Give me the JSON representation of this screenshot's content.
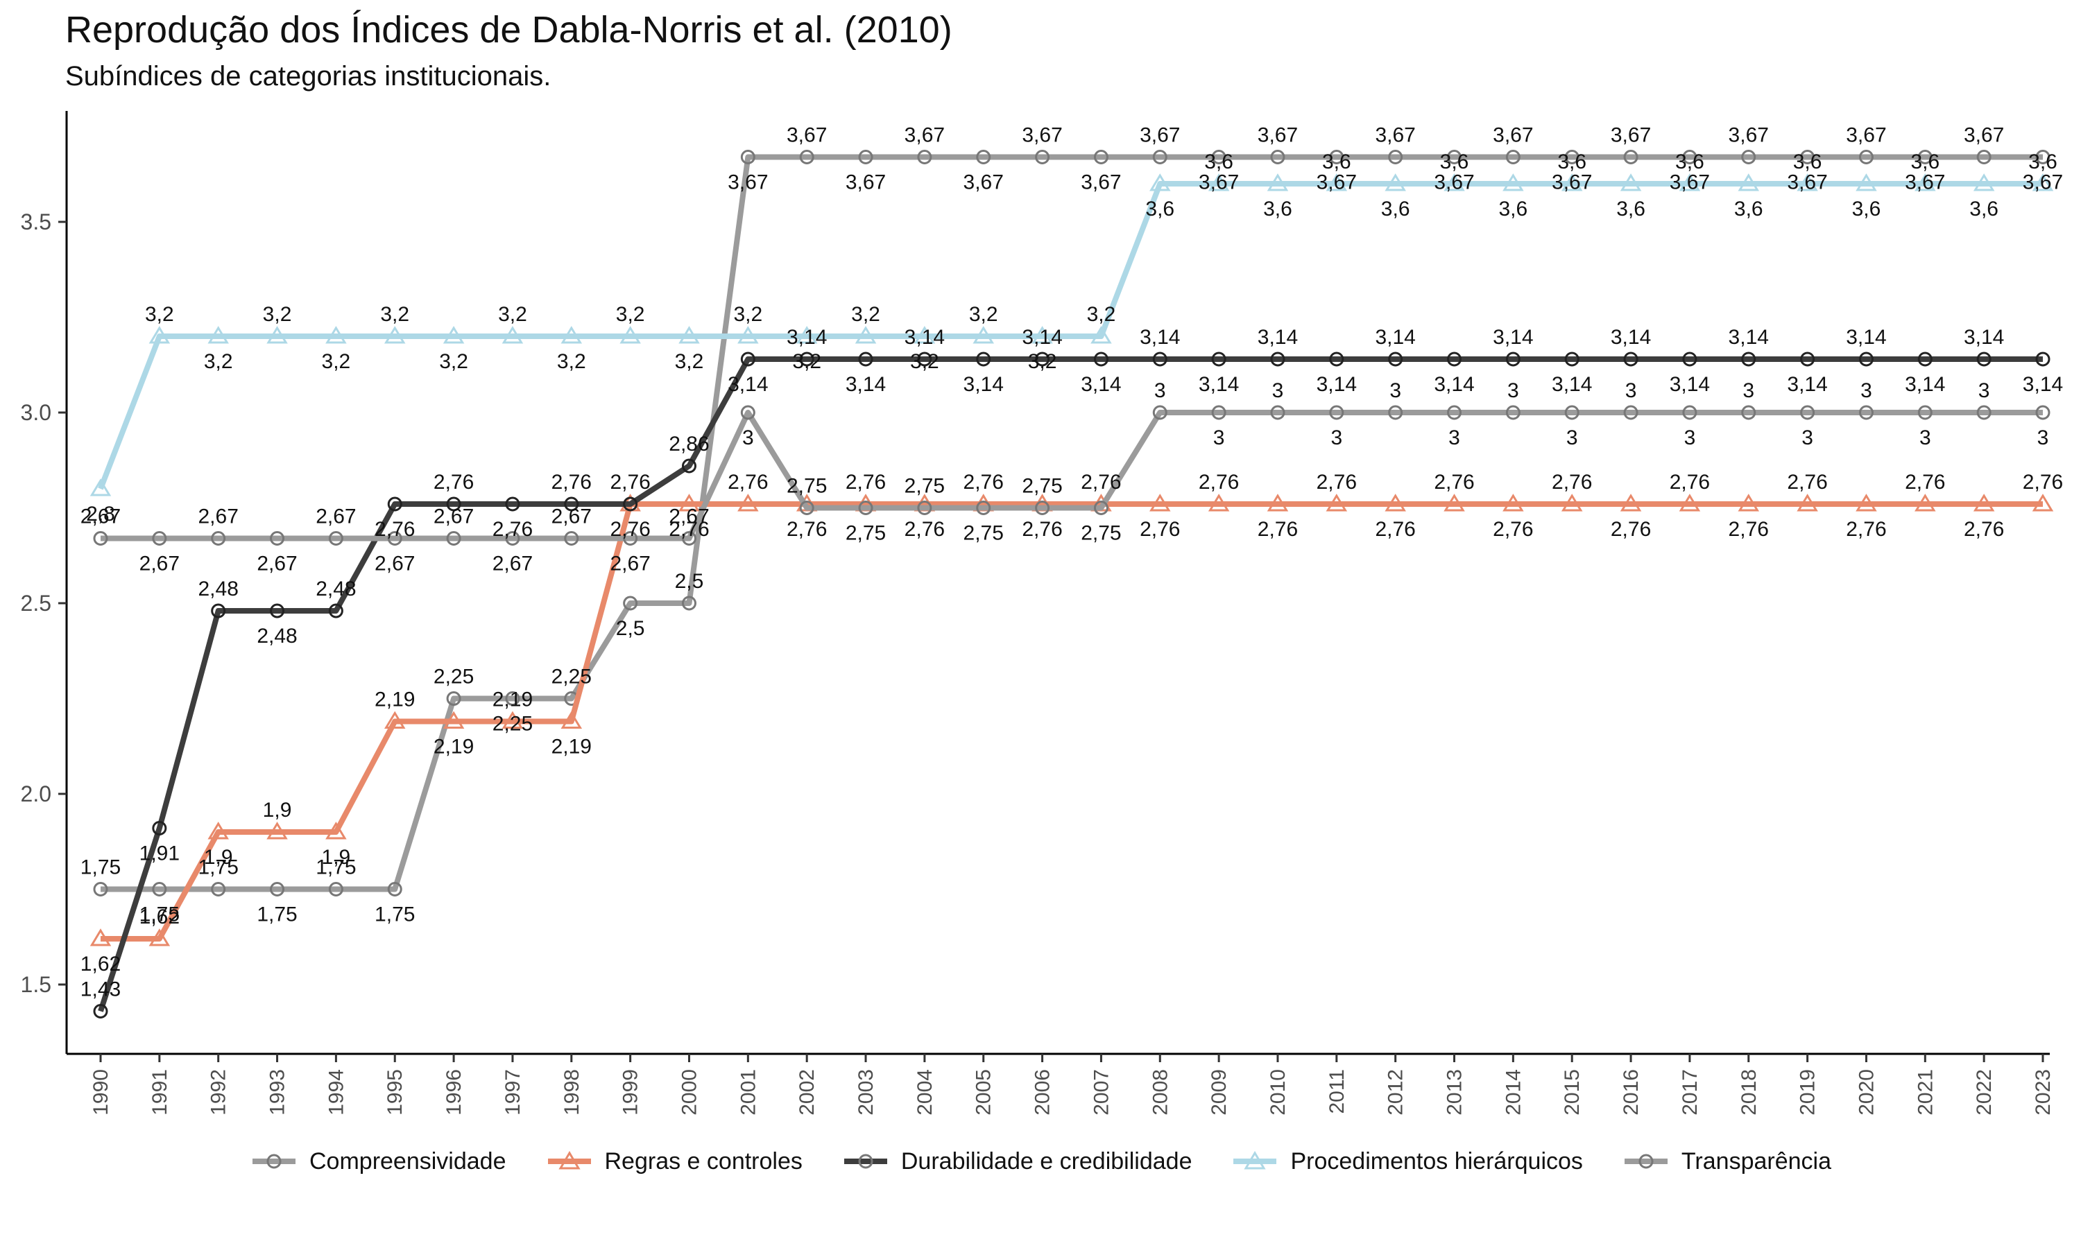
{
  "title": "Reprodução dos Índices de Dabla-Norris et al. (2010)",
  "subtitle": "Subíndices de categorias institucionais.",
  "chart_data": {
    "type": "line",
    "x": [
      1990,
      1991,
      1992,
      1993,
      1994,
      1995,
      1996,
      1997,
      1998,
      1999,
      2000,
      2001,
      2002,
      2003,
      2004,
      2005,
      2006,
      2007,
      2008,
      2009,
      2010,
      2011,
      2012,
      2013,
      2014,
      2015,
      2016,
      2017,
      2018,
      2019,
      2020,
      2021,
      2022,
      2023
    ],
    "ylim": [
      1.32,
      3.78
    ],
    "yticks": [
      "1.5",
      "2.0",
      "2.5",
      "3.0",
      "3.5"
    ],
    "ytick_values": [
      1.5,
      2.0,
      2.5,
      3.0,
      3.5
    ],
    "grid": false,
    "legend_position": "bottom",
    "series": [
      {
        "name": "Compreensividade",
        "color": "#9b9b9b",
        "marker": "circle",
        "values": [
          1.75,
          1.75,
          1.75,
          1.75,
          1.75,
          1.75,
          2.25,
          2.25,
          2.25,
          2.5,
          2.5,
          3.67,
          3.67,
          3.67,
          3.67,
          3.67,
          3.67,
          3.67,
          3.67,
          3.67,
          3.67,
          3.67,
          3.67,
          3.67,
          3.67,
          3.67,
          3.67,
          3.67,
          3.67,
          3.67,
          3.67,
          3.67,
          3.67,
          3.67
        ],
        "labels": [
          "1,75",
          "1,75",
          "1,75",
          "1,75",
          "1,75",
          "1,75",
          "2,25",
          "2,25",
          "2,25",
          "2,5",
          "2,5",
          "3,67",
          "3,67",
          "3,67",
          "3,67",
          "3,67",
          "3,67",
          "3,67",
          "3,67",
          "3,67",
          "3,67",
          "3,67",
          "3,67",
          "3,67",
          "3,67",
          "3,67",
          "3,67",
          "3,67",
          "3,67",
          "3,67",
          "3,67",
          "3,67",
          "3,67",
          "3,67"
        ]
      },
      {
        "name": "Regras e controles",
        "color": "#e8896a",
        "marker": "triangle",
        "values": [
          1.62,
          1.62,
          1.9,
          1.9,
          1.9,
          2.19,
          2.19,
          2.19,
          2.19,
          2.76,
          2.76,
          2.76,
          2.76,
          2.76,
          2.76,
          2.76,
          2.76,
          2.76,
          2.76,
          2.76,
          2.76,
          2.76,
          2.76,
          2.76,
          2.76,
          2.76,
          2.76,
          2.76,
          2.76,
          2.76,
          2.76,
          2.76,
          2.76,
          2.76
        ],
        "labels": [
          "1,62",
          "1,62",
          "1,9",
          "1,9",
          "1,9",
          "2,19",
          "2,19",
          "2,19",
          "2,19",
          "2,76",
          "2,76",
          "2,76",
          "2,76",
          "2,76",
          "2,76",
          "2,76",
          "2,76",
          "2,76",
          "2,76",
          "2,76",
          "2,76",
          "2,76",
          "2,76",
          "2,76",
          "2,76",
          "2,76",
          "2,76",
          "2,76",
          "2,76",
          "2,76",
          "2,76",
          "2,76",
          "2,76",
          "2,76"
        ]
      },
      {
        "name": "Durabilidade e credibilidade",
        "color": "#3d3d3d",
        "marker": "circle",
        "values": [
          1.43,
          1.91,
          2.48,
          2.48,
          2.48,
          2.76,
          2.76,
          2.76,
          2.76,
          2.76,
          2.86,
          3.14,
          3.14,
          3.14,
          3.14,
          3.14,
          3.14,
          3.14,
          3.14,
          3.14,
          3.14,
          3.14,
          3.14,
          3.14,
          3.14,
          3.14,
          3.14,
          3.14,
          3.14,
          3.14,
          3.14,
          3.14,
          3.14,
          3.14
        ],
        "labels": [
          "1,43",
          "1,91",
          "2,48",
          "2,48",
          "2,48",
          "2,76",
          "2,76",
          "2,76",
          "2,76",
          "2,76",
          "2,86",
          "3,14",
          "3,14",
          "3,14",
          "3,14",
          "3,14",
          "3,14",
          "3,14",
          "3,14",
          "3,14",
          "3,14",
          "3,14",
          "3,14",
          "3,14",
          "3,14",
          "3,14",
          "3,14",
          "3,14",
          "3,14",
          "3,14",
          "3,14",
          "3,14",
          "3,14",
          "3,14"
        ]
      },
      {
        "name": "Procedimentos hierárquicos",
        "color": "#add8e6",
        "marker": "triangle",
        "values": [
          2.8,
          3.2,
          3.2,
          3.2,
          3.2,
          3.2,
          3.2,
          3.2,
          3.2,
          3.2,
          3.2,
          3.2,
          3.2,
          3.2,
          3.2,
          3.2,
          3.2,
          3.2,
          3.6,
          3.6,
          3.6,
          3.6,
          3.6,
          3.6,
          3.6,
          3.6,
          3.6,
          3.6,
          3.6,
          3.6,
          3.6,
          3.6,
          3.6,
          3.6
        ],
        "labels": [
          "2,8",
          "3,2",
          "3,2",
          "3,2",
          "3,2",
          "3,2",
          "3,2",
          "3,2",
          "3,2",
          "3,2",
          "3,2",
          "3,2",
          "3,2",
          "3,2",
          "3,2",
          "3,2",
          "3,2",
          "3,2",
          "3,6",
          "3,6",
          "3,6",
          "3,6",
          "3,6",
          "3,6",
          "3,6",
          "3,6",
          "3,6",
          "3,6",
          "3,6",
          "3,6",
          "3,6",
          "3,6",
          "3,6",
          "3,6"
        ]
      },
      {
        "name": "Transparência",
        "color": "#9b9b9b",
        "marker": "circle",
        "values": [
          2.67,
          2.67,
          2.67,
          2.67,
          2.67,
          2.67,
          2.67,
          2.67,
          2.67,
          2.67,
          2.67,
          3.0,
          2.75,
          2.75,
          2.75,
          2.75,
          2.75,
          2.75,
          3.0,
          3.0,
          3.0,
          3.0,
          3.0,
          3.0,
          3.0,
          3.0,
          3.0,
          3.0,
          3.0,
          3.0,
          3.0,
          3.0,
          3.0,
          3.0
        ],
        "labels": [
          "2,67",
          "2,67",
          "2,67",
          "2,67",
          "2,67",
          "2,67",
          "2,67",
          "2,67",
          "2,67",
          "2,67",
          "2,67",
          "3",
          "2,75",
          "2,75",
          "2,75",
          "2,75",
          "2,75",
          "2,75",
          "3",
          "3",
          "3",
          "3",
          "3",
          "3",
          "3",
          "3",
          "3",
          "3",
          "3",
          "3",
          "3",
          "3",
          "3",
          "3"
        ]
      }
    ]
  }
}
